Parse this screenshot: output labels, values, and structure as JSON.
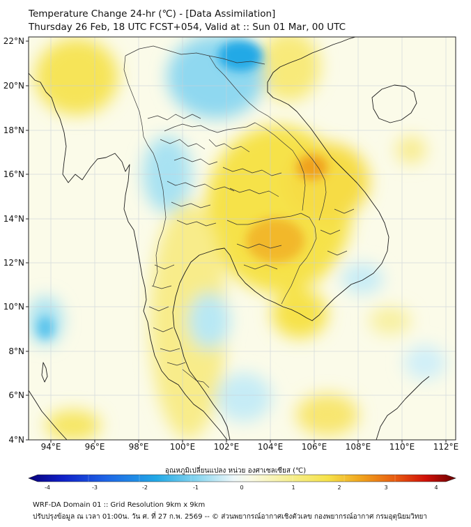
{
  "header": {
    "title_line1": "Temperature Change 24-hr (℃) - [Data Assimilation]",
    "title_line2": "Thursday 26 Feb, 18 UTC FCST+054, Valid at :: Sun 01 Mar, 00 UTC"
  },
  "map": {
    "lon_ticks": [
      "94°E",
      "96°E",
      "98°E",
      "100°E",
      "102°E",
      "104°E",
      "106°E",
      "108°E",
      "110°E",
      "112°E"
    ],
    "lat_ticks": [
      "22°N",
      "20°N",
      "18°N",
      "16°N",
      "14°N",
      "12°N",
      "10°N",
      "8°N",
      "6°N",
      "4°N"
    ],
    "colors": {
      "warm": "#f6e24a",
      "hot": "#f0a21c",
      "cool": "#8fd8f0",
      "cold": "#22a9e6",
      "neutral": "#fbfbe6"
    }
  },
  "colorbar": {
    "title": "อุณหภูมิเปลี่ยนแปลง หน่วย องศาเซลเซียส (℃)",
    "tick_labels": [
      "-4",
      "-3",
      "-2",
      "-1",
      "0",
      "1",
      "2",
      "3",
      "4"
    ]
  },
  "footer": {
    "line1": "WRF-DA Domain 01 :: Grid Resolution 9km x 9km",
    "line2": "ปรับปรุงข้อมูล ณ เวลา 01:00น. วัน ศ. ที่ 27 ก.พ. 2569 -- © ส่วนพยากรณ์อากาศเชิงตัวเลข กองพยากรณ์อากาศ กรมอุตุนิยมวิทยา"
  }
}
